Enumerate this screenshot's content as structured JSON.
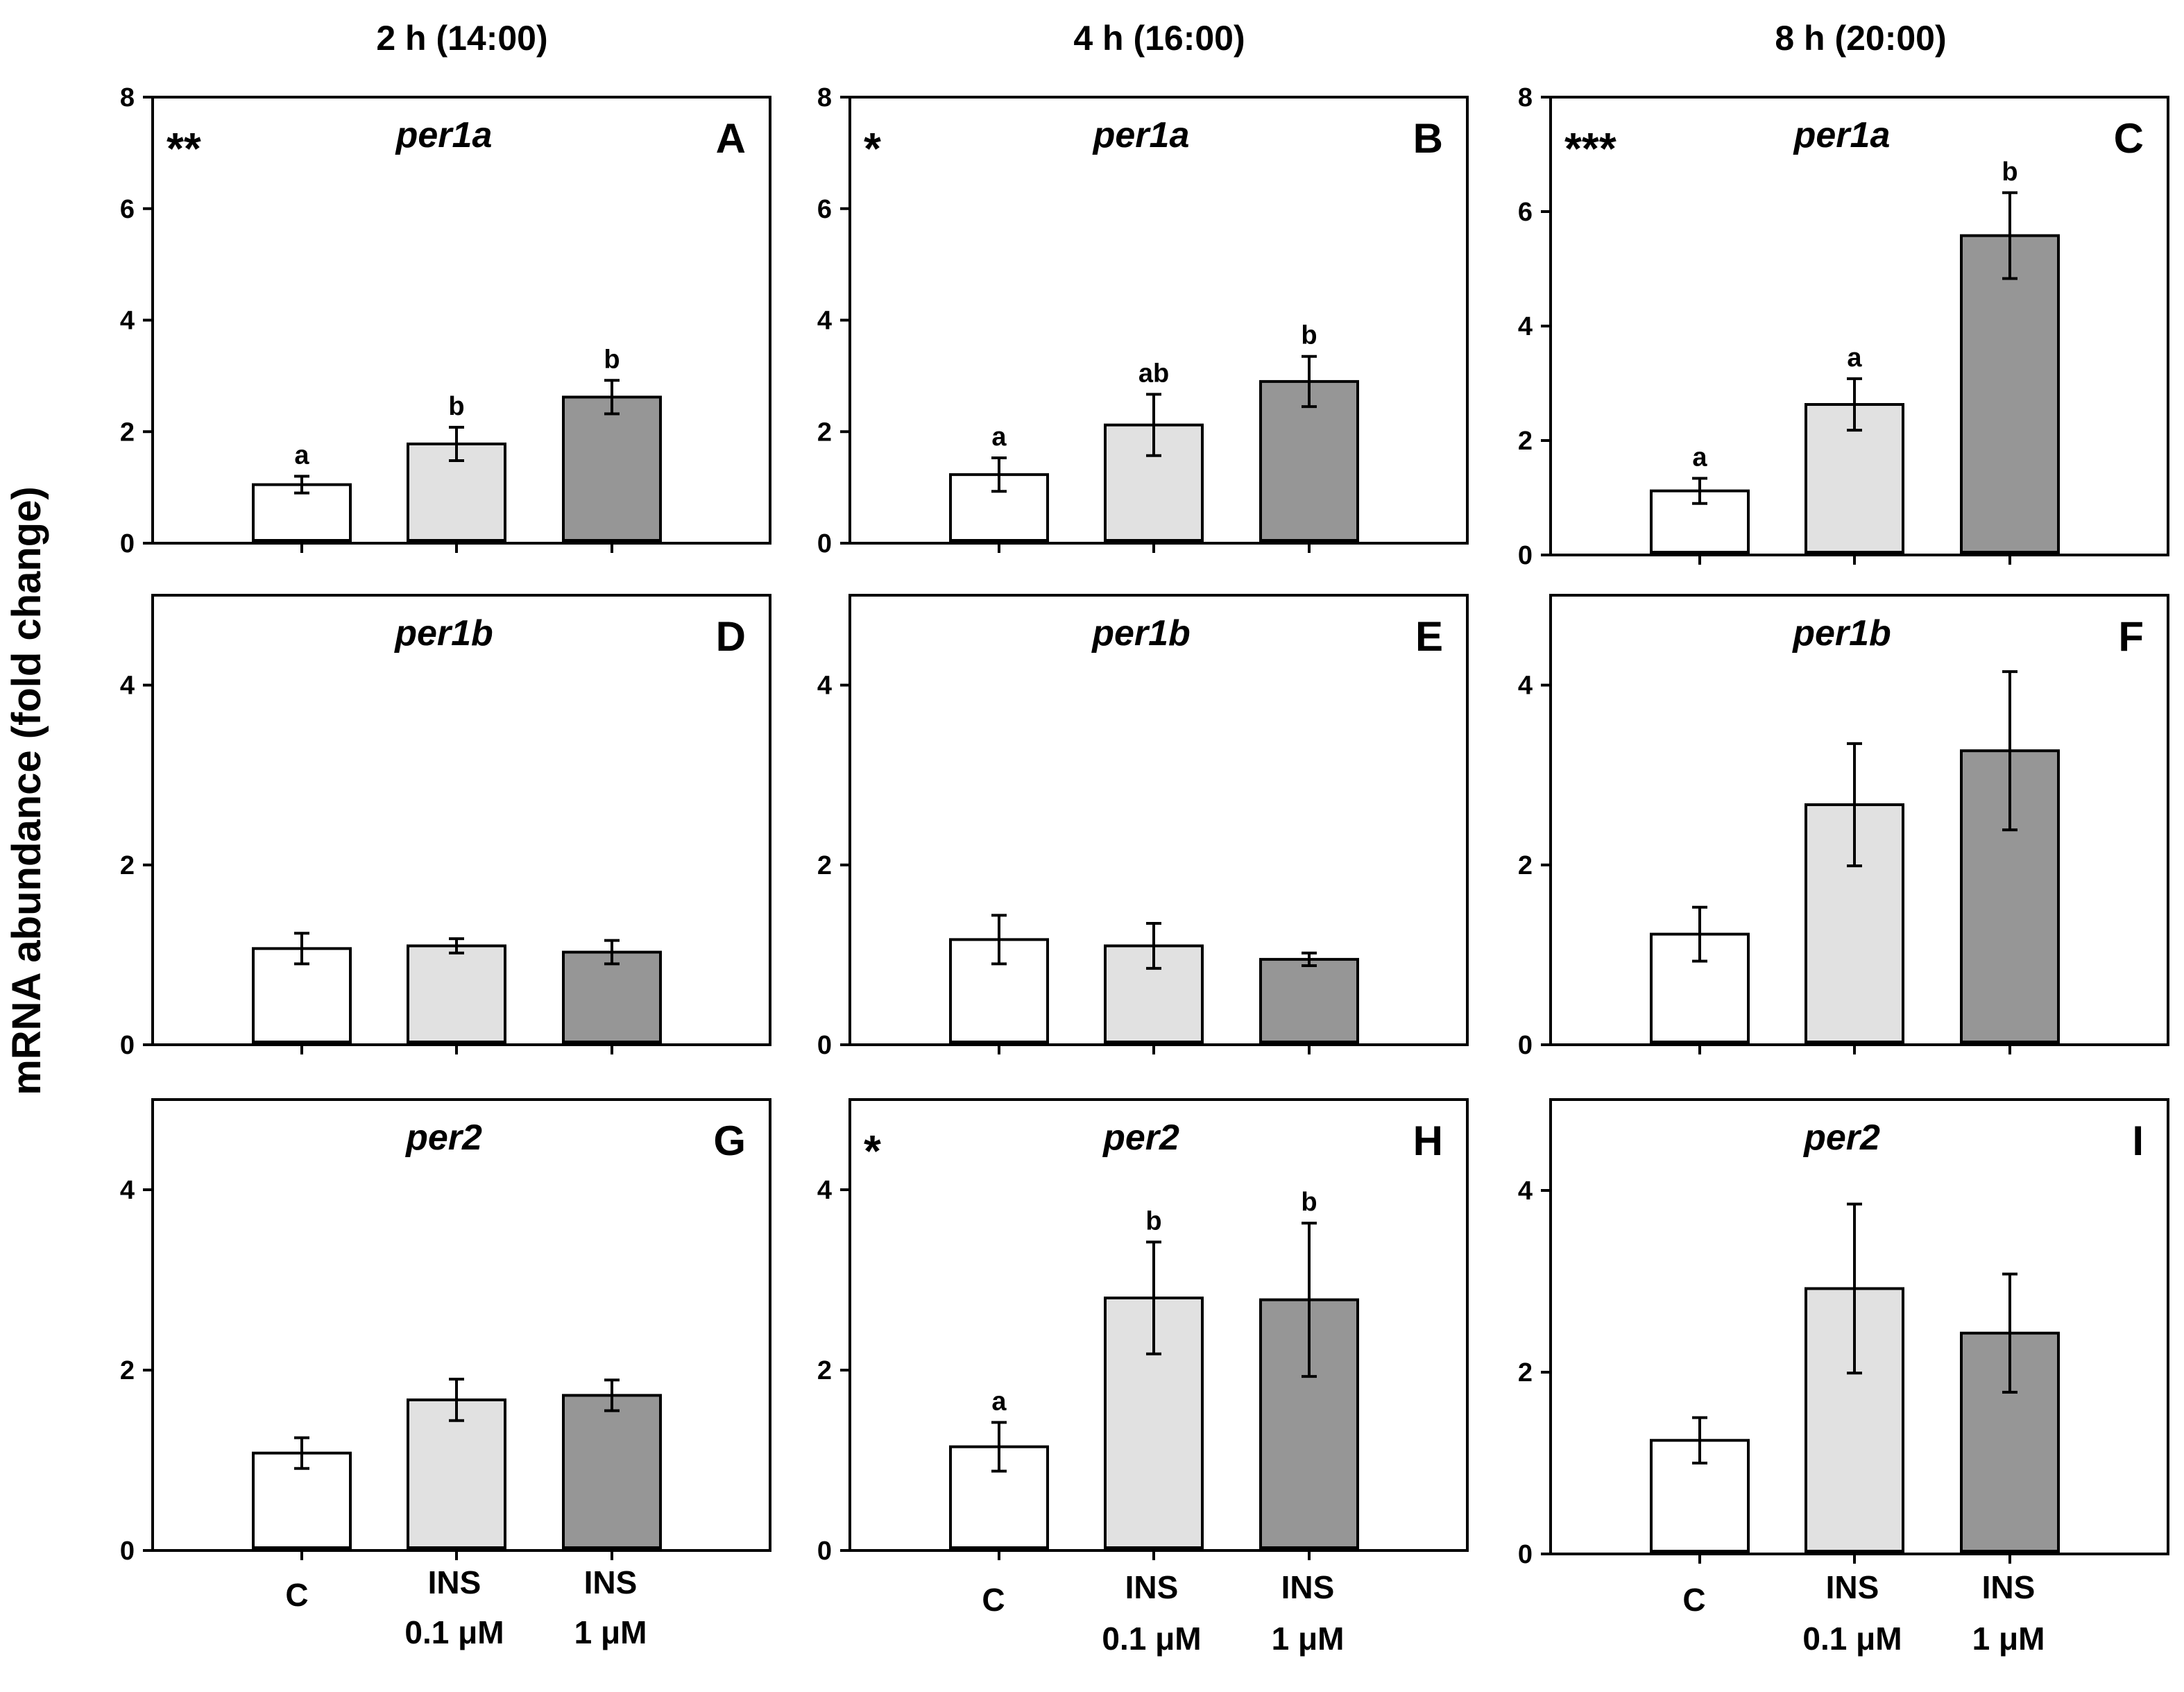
{
  "column_titles": [
    "2 h (14:00)",
    "4 h (16:00)",
    "8 h (20:00)"
  ],
  "y_axis_label": "mRNA abundance (fold change)",
  "x_categories": [
    {
      "line1": "C",
      "line2": ""
    },
    {
      "line1": "INS",
      "line2": "0.1 μM"
    },
    {
      "line1": "INS",
      "line2": "1 μM"
    }
  ],
  "colors": {
    "control": "#ffffff",
    "ins_0_1": "#e1e1e1",
    "ins_1": "#969696",
    "axis": "#000000"
  },
  "chart_data": [
    {
      "type": "bar",
      "panel": "A",
      "gene": "per1a",
      "significance": "**",
      "ylim": [
        0,
        8
      ],
      "yticks": [
        0,
        2,
        4,
        6,
        8
      ],
      "categories": [
        "C",
        "INS 0.1 μM",
        "INS 1 μM"
      ],
      "values": [
        1.05,
        1.78,
        2.62
      ],
      "errors": [
        0.15,
        0.3,
        0.3
      ],
      "letters": [
        "a",
        "b",
        "b"
      ]
    },
    {
      "type": "bar",
      "panel": "B",
      "gene": "per1a",
      "significance": "*",
      "ylim": [
        0,
        8
      ],
      "yticks": [
        0,
        2,
        4,
        6,
        8
      ],
      "categories": [
        "C",
        "INS 0.1 μM",
        "INS 1 μM"
      ],
      "values": [
        1.23,
        2.12,
        2.9
      ],
      "errors": [
        0.3,
        0.55,
        0.45
      ],
      "letters": [
        "a",
        "ab",
        "b"
      ]
    },
    {
      "type": "bar",
      "panel": "C",
      "gene": "per1a",
      "significance": "***",
      "ylim": [
        0,
        8
      ],
      "yticks": [
        0,
        2,
        4,
        6,
        8
      ],
      "categories": [
        "C",
        "INS 0.1 μM",
        "INS 1 μM"
      ],
      "values": [
        1.12,
        2.63,
        5.58
      ],
      "errors": [
        0.22,
        0.45,
        0.75
      ],
      "letters": [
        "a",
        "a",
        "b"
      ]
    },
    {
      "type": "bar",
      "panel": "D",
      "gene": "per1b",
      "significance": "",
      "ylim": [
        0,
        5
      ],
      "yticks": [
        0,
        2,
        4
      ],
      "categories": [
        "C",
        "INS 0.1 μM",
        "INS 1 μM"
      ],
      "values": [
        1.07,
        1.1,
        1.03
      ],
      "errors": [
        0.17,
        0.08,
        0.13
      ],
      "letters": [
        "",
        "",
        ""
      ]
    },
    {
      "type": "bar",
      "panel": "E",
      "gene": "per1b",
      "significance": "",
      "ylim": [
        0,
        5
      ],
      "yticks": [
        0,
        2,
        4
      ],
      "categories": [
        "C",
        "INS 0.1 μM",
        "INS 1 μM"
      ],
      "values": [
        1.17,
        1.1,
        0.95
      ],
      "errors": [
        0.27,
        0.25,
        0.07
      ],
      "letters": [
        "",
        "",
        ""
      ]
    },
    {
      "type": "bar",
      "panel": "F",
      "gene": "per1b",
      "significance": "",
      "ylim": [
        0,
        5
      ],
      "yticks": [
        0,
        2,
        4
      ],
      "categories": [
        "C",
        "INS 0.1 μM",
        "INS 1 μM"
      ],
      "values": [
        1.23,
        2.67,
        3.27
      ],
      "errors": [
        0.3,
        0.68,
        0.88
      ],
      "letters": [
        "",
        "",
        ""
      ]
    },
    {
      "type": "bar",
      "panel": "G",
      "gene": "per2",
      "significance": "",
      "ylim": [
        0,
        5
      ],
      "yticks": [
        0,
        2,
        4
      ],
      "categories": [
        "C",
        "INS 0.1 μM",
        "INS 1 μM"
      ],
      "values": [
        1.08,
        1.67,
        1.72
      ],
      "errors": [
        0.17,
        0.23,
        0.17
      ],
      "letters": [
        "",
        "",
        ""
      ]
    },
    {
      "type": "bar",
      "panel": "H",
      "gene": "per2",
      "significance": "*",
      "ylim": [
        0,
        5
      ],
      "yticks": [
        0,
        2,
        4
      ],
      "categories": [
        "C",
        "INS 0.1 μM",
        "INS 1 μM"
      ],
      "values": [
        1.15,
        2.8,
        2.78
      ],
      "errors": [
        0.27,
        0.62,
        0.85
      ],
      "letters": [
        "a",
        "b",
        "b"
      ]
    },
    {
      "type": "bar",
      "panel": "I",
      "gene": "per2",
      "significance": "",
      "ylim": [
        0,
        5
      ],
      "yticks": [
        0,
        2,
        4
      ],
      "categories": [
        "C",
        "INS 0.1 μM",
        "INS 1 μM"
      ],
      "values": [
        1.25,
        2.92,
        2.43
      ],
      "errors": [
        0.25,
        0.93,
        0.65
      ],
      "letters": [
        "",
        "",
        ""
      ]
    }
  ]
}
